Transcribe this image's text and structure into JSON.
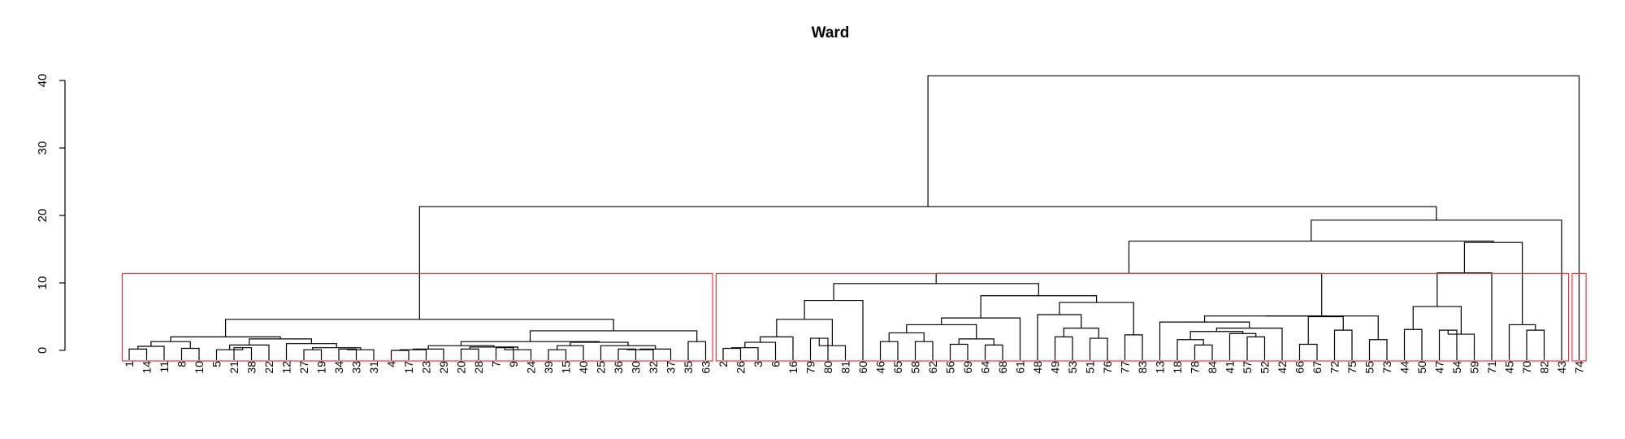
{
  "chart_data": {
    "type": "dendrogram",
    "title": "Ward",
    "xlabel": "",
    "ylabel": "",
    "ylim": [
      0,
      40
    ],
    "yticks": [
      0,
      10,
      20,
      30,
      40
    ],
    "ytick_labels": [
      "0",
      "10",
      "20",
      "30",
      "40"
    ],
    "leaves": [
      "1",
      "14",
      "11",
      "8",
      "10",
      "5",
      "21",
      "38",
      "22",
      "12",
      "27",
      "19",
      "34",
      "33",
      "31",
      "4",
      "17",
      "23",
      "29",
      "20",
      "28",
      "7",
      "9",
      "24",
      "39",
      "15",
      "40",
      "25",
      "36",
      "30",
      "32",
      "37",
      "35",
      "63",
      "2",
      "26",
      "3",
      "6",
      "16",
      "79",
      "80",
      "81",
      "60",
      "46",
      "65",
      "58",
      "62",
      "56",
      "69",
      "64",
      "68",
      "61",
      "48",
      "49",
      "53",
      "51",
      "76",
      "77",
      "83",
      "13",
      "18",
      "78",
      "84",
      "41",
      "57",
      "52",
      "42",
      "66",
      "67",
      "72",
      "75",
      "55",
      "73",
      "44",
      "50",
      "47",
      "54",
      "59",
      "71",
      "45",
      "70",
      "82",
      "43",
      "74"
    ],
    "merges": [
      {
        "left": "1",
        "right": "14",
        "height": 0.2
      },
      {
        "left": "m1",
        "right": "11",
        "height": 0.6
      },
      {
        "left": "8",
        "right": "10",
        "height": 0.3
      },
      {
        "left": "m2",
        "right": "m3",
        "height": 1.3
      },
      {
        "left": "21",
        "right": "38",
        "height": 0.4
      },
      {
        "left": "5",
        "right": "m5",
        "height": 0.1
      },
      {
        "left": "m6",
        "right": "22",
        "height": 0.8
      },
      {
        "left": "27",
        "right": "19",
        "height": 0.1
      },
      {
        "left": "34",
        "right": "33",
        "height": 0.2
      },
      {
        "left": "m9",
        "right": "31",
        "height": 0.1
      },
      {
        "left": "m8",
        "right": "m10",
        "height": 0.4
      },
      {
        "left": "12",
        "right": "m11",
        "height": 1.0
      },
      {
        "left": "m7",
        "right": "m12",
        "height": 1.7
      },
      {
        "left": "m4",
        "right": "m13",
        "height": 2.0
      },
      {
        "left": "4",
        "right": "17",
        "height": 0.0
      },
      {
        "left": "m15",
        "right": "23",
        "height": 0.1
      },
      {
        "left": "m16",
        "right": "29",
        "height": 0.2
      },
      {
        "left": "20",
        "right": "28",
        "height": 0.2
      },
      {
        "left": "7",
        "right": "9",
        "height": 0.4
      },
      {
        "left": "m19",
        "right": "24",
        "height": 0.1
      },
      {
        "left": "m18",
        "right": "m20",
        "height": 0.5
      },
      {
        "left": "m17",
        "right": "m21",
        "height": 0.7
      },
      {
        "left": "39",
        "right": "15",
        "height": 0.1
      },
      {
        "left": "m23",
        "right": "40",
        "height": 0.7
      },
      {
        "left": "36",
        "right": "30",
        "height": 0.2
      },
      {
        "left": "m25",
        "right": "32",
        "height": 0.1
      },
      {
        "left": "m26",
        "right": "37",
        "height": 0.2
      },
      {
        "left": "25",
        "right": "m27",
        "height": 0.7
      },
      {
        "left": "m24",
        "right": "m28",
        "height": 1.2
      },
      {
        "left": "m22",
        "right": "m29",
        "height": 1.3
      },
      {
        "left": "35",
        "right": "63",
        "height": 1.3
      },
      {
        "left": "m30",
        "right": "m31",
        "height": 2.9
      },
      {
        "left": "m14",
        "right": "m32",
        "height": 4.6
      },
      {
        "left": "2",
        "right": "26",
        "height": 0.3
      },
      {
        "left": "m34",
        "right": "3",
        "height": 0.4
      },
      {
        "left": "m35",
        "right": "6",
        "height": 1.2
      },
      {
        "left": "m36",
        "right": "16",
        "height": 2.0
      },
      {
        "left": "79",
        "right": "80",
        "height": 1.8
      },
      {
        "left": "m38",
        "right": "81",
        "height": 0.7
      },
      {
        "left": "m37",
        "right": "m39",
        "height": 4.6
      },
      {
        "left": "m40",
        "right": "60",
        "height": 7.4
      },
      {
        "left": "58",
        "right": "62",
        "height": 1.3
      },
      {
        "left": "46",
        "right": "65",
        "height": 1.3
      },
      {
        "left": "m43",
        "right": "m42",
        "height": 2.6
      },
      {
        "left": "56",
        "right": "69",
        "height": 0.9
      },
      {
        "left": "64",
        "right": "68",
        "height": 0.8
      },
      {
        "left": "m45",
        "right": "m46",
        "height": 1.7
      },
      {
        "left": "m44",
        "right": "m47",
        "height": 3.8
      },
      {
        "left": "m48",
        "right": "61",
        "height": 4.8
      },
      {
        "left": "49",
        "right": "53",
        "height": 2.0
      },
      {
        "left": "51",
        "right": "76",
        "height": 1.8
      },
      {
        "left": "m50",
        "right": "m51",
        "height": 3.3
      },
      {
        "left": "48",
        "right": "m52",
        "height": 5.3
      },
      {
        "left": "77",
        "right": "83",
        "height": 2.3
      },
      {
        "left": "m53",
        "right": "m54",
        "height": 7.1
      },
      {
        "left": "m49",
        "right": "m55",
        "height": 8.1
      },
      {
        "left": "m41",
        "right": "m56",
        "height": 9.9
      },
      {
        "left": "78",
        "right": "84",
        "height": 0.8
      },
      {
        "left": "18",
        "right": "m58",
        "height": 1.6
      },
      {
        "left": "57",
        "right": "52",
        "height": 2.0
      },
      {
        "left": "41",
        "right": "m60",
        "height": 2.5
      },
      {
        "left": "m59",
        "right": "m61",
        "height": 2.8
      },
      {
        "left": "m62",
        "right": "42",
        "height": 3.3
      },
      {
        "left": "13",
        "right": "m63",
        "height": 4.2
      },
      {
        "left": "66",
        "right": "67",
        "height": 0.9
      },
      {
        "left": "72",
        "right": "75",
        "height": 3.0
      },
      {
        "left": "m65",
        "right": "m66",
        "height": 5.0
      },
      {
        "left": "m64",
        "right": "m67",
        "height": 5.1
      },
      {
        "left": "55",
        "right": "73",
        "height": 1.6
      },
      {
        "left": "m68",
        "right": "m69",
        "height": 5.1
      },
      {
        "left": "m57",
        "right": "m70",
        "height": 11.4
      },
      {
        "left": "47",
        "right": "54",
        "height": 3.0
      },
      {
        "left": "m72",
        "right": "59",
        "height": 2.4
      },
      {
        "left": "44",
        "right": "50",
        "height": 3.1
      },
      {
        "left": "m74",
        "right": "m73",
        "height": 6.5
      },
      {
        "left": "m75",
        "right": "71",
        "height": 11.5
      },
      {
        "left": "70",
        "right": "82",
        "height": 3.0
      },
      {
        "left": "45",
        "right": "m77",
        "height": 3.8
      },
      {
        "left": "m76",
        "right": "m78",
        "height": 16.0
      },
      {
        "left": "m71",
        "right": "m79",
        "height": 16.2
      },
      {
        "left": "m80",
        "right": "43",
        "height": 19.3
      },
      {
        "left": "m33",
        "right": "m81",
        "height": 21.3
      },
      {
        "left": "m82",
        "right": "74",
        "height": 40.7
      }
    ],
    "cut_clusters": [
      {
        "first_leaf": "1",
        "last_leaf": "63"
      },
      {
        "first_leaf": "2",
        "last_leaf": "43"
      },
      {
        "first_leaf": "74",
        "last_leaf": "74"
      }
    ],
    "cut_height": 11.4,
    "colors": {
      "branches": "#000000",
      "cluster_boxes": "#e8383d"
    }
  }
}
